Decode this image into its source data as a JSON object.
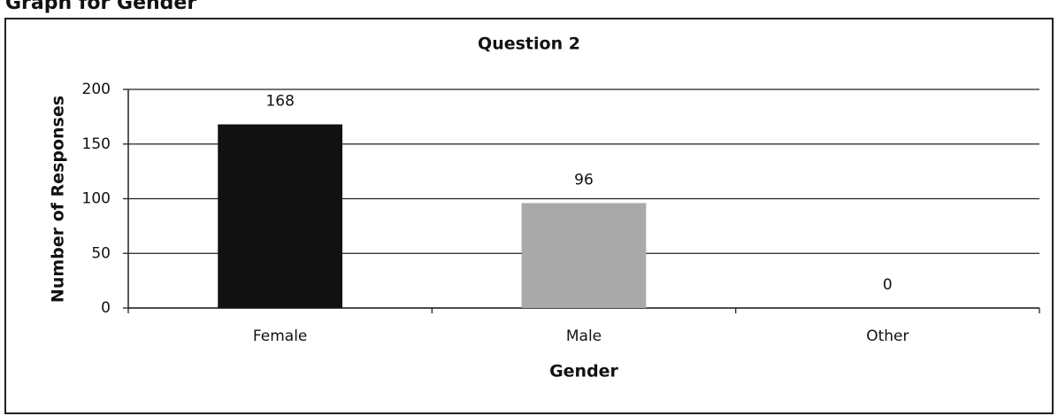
{
  "header": {
    "title": "Graph for Gender"
  },
  "chart_data": {
    "type": "bar",
    "title": "Question 2",
    "x_label": "Gender",
    "y_label": "Number of Responses",
    "categories": [
      "Female",
      "Male",
      "Other"
    ],
    "values": [
      168,
      96,
      0
    ],
    "colors": [
      "#111111",
      "#a9a9a9",
      "#a9a9a9"
    ],
    "ylim": [
      0,
      200
    ],
    "yticks": [
      0,
      50,
      100,
      150,
      200
    ],
    "grid": true
  }
}
